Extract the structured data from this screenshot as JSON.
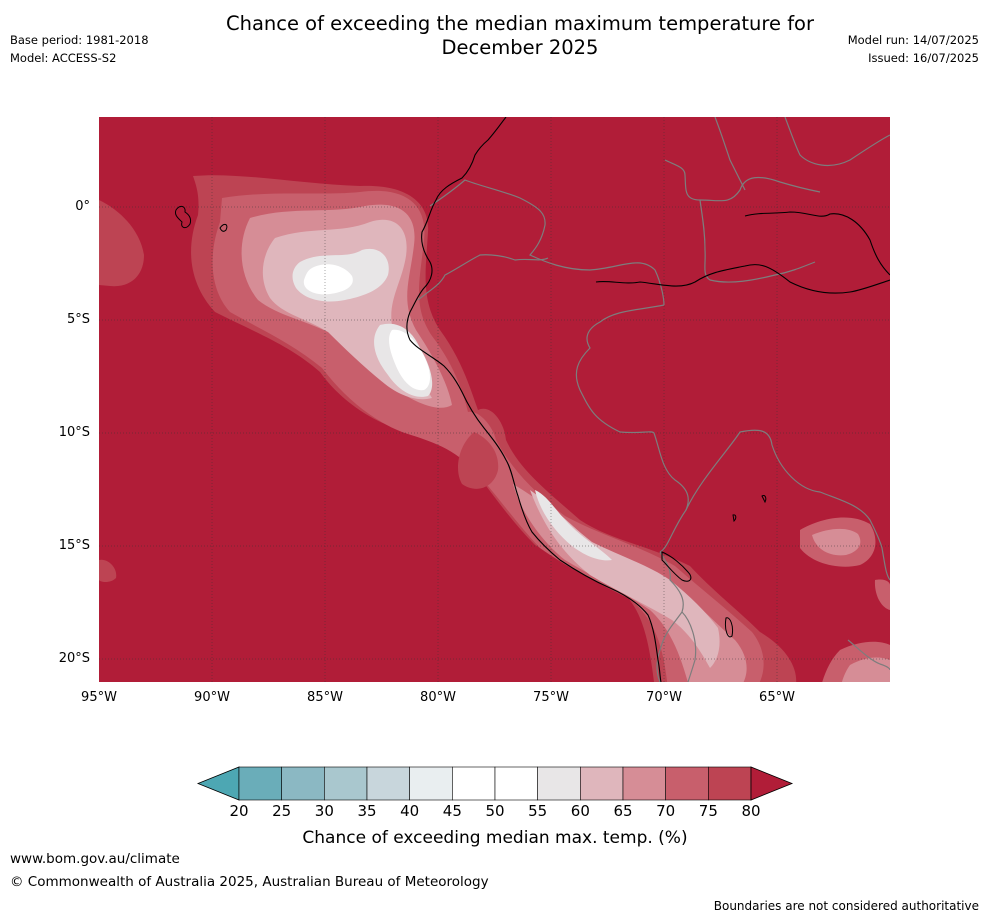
{
  "title": {
    "line1": "Chance of exceeding the median maximum temperature for",
    "line2": "December 2025"
  },
  "meta": {
    "base_period": "Base period: 1981-2018",
    "model": "Model: ACCESS-S2",
    "model_run": "Model run: 14/07/2025",
    "issued": "Issued: 16/07/2025"
  },
  "map": {
    "lat_labels": [
      "0°",
      "5°S",
      "10°S",
      "15°S",
      "20°S"
    ],
    "lat_values": [
      0,
      -5,
      -10,
      -15,
      -20
    ],
    "lon_labels": [
      "95°W",
      "90°W",
      "85°W",
      "80°W",
      "75°W",
      "70°W",
      "65°W"
    ],
    "lon_values": [
      -95,
      -90,
      -85,
      -80,
      -75,
      -70,
      -65
    ],
    "lon_range": [
      -95,
      -60
    ],
    "lat_range": [
      3.9,
      -21.1
    ],
    "background_color": "#b11d38",
    "grid": "dotted"
  },
  "colorbar": {
    "ticks": [
      "20",
      "25",
      "30",
      "35",
      "40",
      "45",
      "50",
      "55",
      "60",
      "65",
      "70",
      "75",
      "80"
    ],
    "colors": [
      "#6aadb9",
      "#8bb8c3",
      "#a9c7ce",
      "#c8d6dc",
      "#e9eef0",
      "#ffffff",
      "#ffffff",
      "#e8e6e7",
      "#dfb6bc",
      "#d68d96",
      "#c85f6c",
      "#bd4453"
    ],
    "under_color": "#4da7b3",
    "over_color": "#b11d38",
    "label": "Chance of exceeding median max. temp. (%)"
  },
  "footer": {
    "url": "www.bom.gov.au/climate",
    "copyright": "© Commonwealth of Australia 2025, Australian Bureau of Meteorology",
    "note": "Boundaries are not considered authoritative"
  }
}
